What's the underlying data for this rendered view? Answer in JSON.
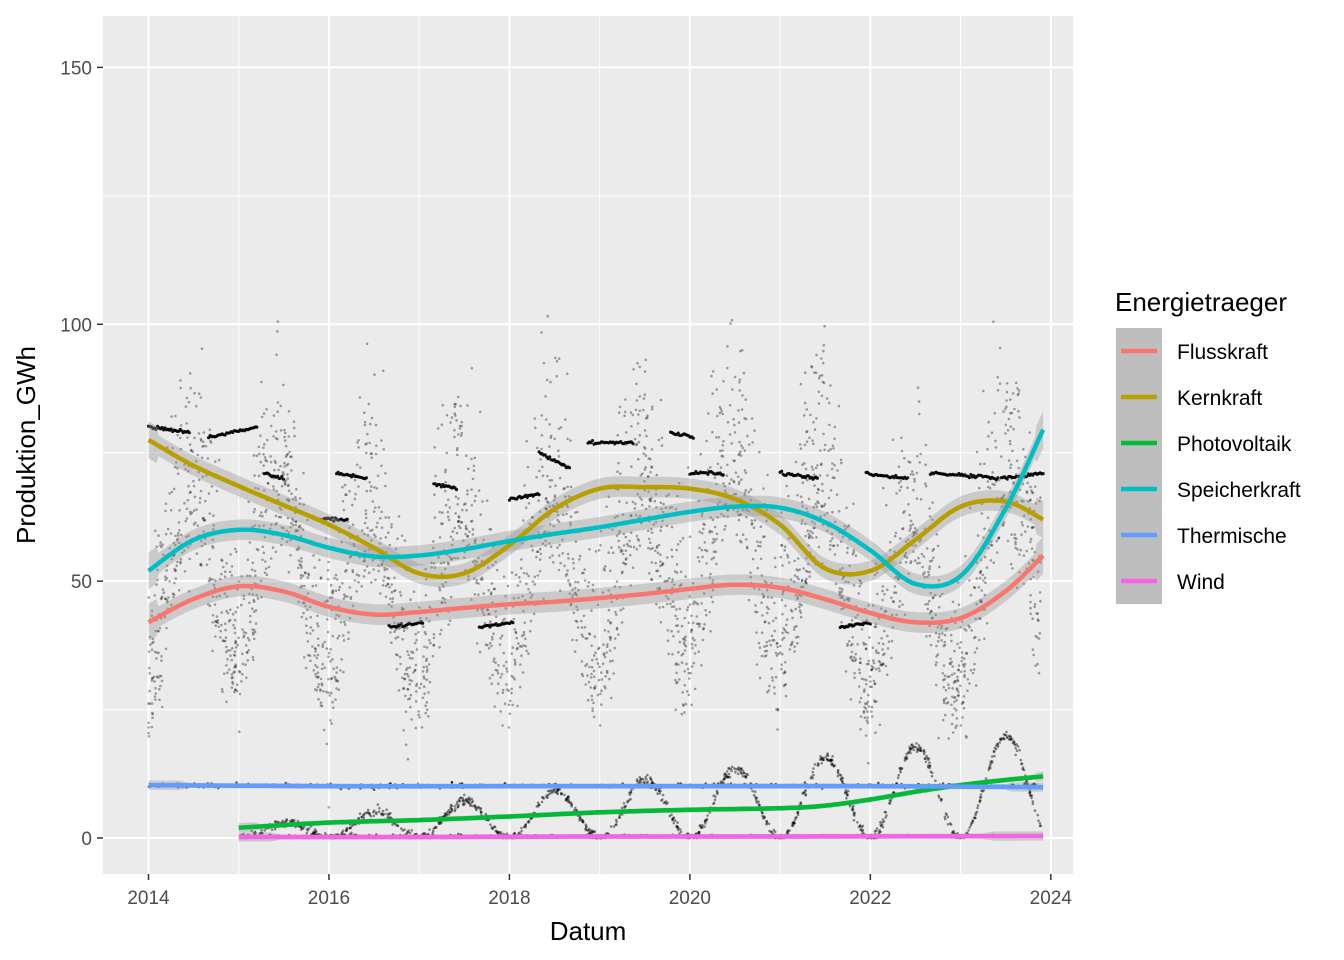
{
  "chart_data": {
    "type": "scatter",
    "xlabel": "Datum",
    "ylabel": "Produktion_GWh",
    "xlim": [
      "2013-07-01",
      "2024-03-31"
    ],
    "ylim": [
      -7,
      160
    ],
    "x_ticks": [
      "2014",
      "2016",
      "2018",
      "2020",
      "2022",
      "2024"
    ],
    "y_ticks": [
      0,
      50,
      100,
      150
    ],
    "grid": true,
    "legend": {
      "title": "Energietraeger",
      "position": "right"
    },
    "series": [
      {
        "name": "Flusskraft",
        "color": "#F8766D",
        "type": "smooth",
        "points": [
          [
            "2014-01-01",
            42
          ],
          [
            "2014-07-01",
            46.5
          ],
          [
            "2015-01-01",
            49
          ],
          [
            "2015-07-01",
            48
          ],
          [
            "2016-01-01",
            45
          ],
          [
            "2016-07-01",
            43.5
          ],
          [
            "2017-01-01",
            44
          ],
          [
            "2017-07-01",
            44.8
          ],
          [
            "2018-01-01",
            45.5
          ],
          [
            "2018-07-01",
            46
          ],
          [
            "2019-01-01",
            46.7
          ],
          [
            "2019-07-01",
            47.5
          ],
          [
            "2020-01-01",
            48.5
          ],
          [
            "2020-07-01",
            49.3
          ],
          [
            "2021-01-01",
            48.7
          ],
          [
            "2021-07-01",
            46.5
          ],
          [
            "2022-01-01",
            43.8
          ],
          [
            "2022-07-01",
            42
          ],
          [
            "2023-01-01",
            42.8
          ],
          [
            "2023-07-01",
            48
          ],
          [
            "2023-12-01",
            55
          ]
        ]
      },
      {
        "name": "Kernkraft",
        "color": "#B79F00",
        "type": "smooth",
        "points": [
          [
            "2014-01-01",
            77.5
          ],
          [
            "2014-07-01",
            72.5
          ],
          [
            "2015-01-01",
            68.5
          ],
          [
            "2015-07-01",
            64.8
          ],
          [
            "2016-01-01",
            61
          ],
          [
            "2016-07-01",
            56.5
          ],
          [
            "2017-01-01",
            51.5
          ],
          [
            "2017-07-01",
            51.5
          ],
          [
            "2018-01-01",
            57
          ],
          [
            "2018-07-01",
            64
          ],
          [
            "2019-01-01",
            68
          ],
          [
            "2019-07-01",
            68.3
          ],
          [
            "2020-01-01",
            68
          ],
          [
            "2020-07-01",
            66
          ],
          [
            "2021-01-01",
            61
          ],
          [
            "2021-07-01",
            52.5
          ],
          [
            "2022-01-01",
            52
          ],
          [
            "2022-07-01",
            58
          ],
          [
            "2023-01-01",
            64.5
          ],
          [
            "2023-07-01",
            65.5
          ],
          [
            "2023-12-01",
            62
          ]
        ]
      },
      {
        "name": "Photovoltaik",
        "color": "#00BA38",
        "type": "smooth",
        "points": [
          [
            "2015-01-01",
            2
          ],
          [
            "2016-01-01",
            3
          ],
          [
            "2017-01-01",
            3.5
          ],
          [
            "2018-01-01",
            4.2
          ],
          [
            "2019-01-01",
            5
          ],
          [
            "2020-01-01",
            5.5
          ],
          [
            "2021-01-01",
            5.8
          ],
          [
            "2021-07-01",
            6.3
          ],
          [
            "2022-01-01",
            7.5
          ],
          [
            "2022-07-01",
            9
          ],
          [
            "2023-01-01",
            10.3
          ],
          [
            "2023-07-01",
            11.3
          ],
          [
            "2023-12-01",
            12
          ]
        ]
      },
      {
        "name": "Speicherkraft",
        "color": "#00BFC4",
        "type": "smooth",
        "points": [
          [
            "2014-01-01",
            52
          ],
          [
            "2014-07-01",
            58
          ],
          [
            "2015-01-01",
            60
          ],
          [
            "2015-07-01",
            59
          ],
          [
            "2016-01-01",
            56.5
          ],
          [
            "2016-07-01",
            54.8
          ],
          [
            "2017-01-01",
            55
          ],
          [
            "2017-07-01",
            56.2
          ],
          [
            "2018-01-01",
            57.8
          ],
          [
            "2018-07-01",
            59.2
          ],
          [
            "2019-01-01",
            60.5
          ],
          [
            "2019-07-01",
            62
          ],
          [
            "2020-01-01",
            63.5
          ],
          [
            "2020-07-01",
            64.5
          ],
          [
            "2021-01-01",
            64.3
          ],
          [
            "2021-07-01",
            61.5
          ],
          [
            "2022-01-01",
            56
          ],
          [
            "2022-07-01",
            49.5
          ],
          [
            "2023-01-01",
            51
          ],
          [
            "2023-07-01",
            64
          ],
          [
            "2023-12-01",
            79.5
          ]
        ]
      },
      {
        "name": "Thermische",
        "color": "#619CFF",
        "type": "smooth",
        "points": [
          [
            "2014-01-01",
            10.3
          ],
          [
            "2016-01-01",
            10.1
          ],
          [
            "2018-01-01",
            10.1
          ],
          [
            "2020-01-01",
            10.1
          ],
          [
            "2022-01-01",
            10.1
          ],
          [
            "2023-12-01",
            9.9
          ]
        ]
      },
      {
        "name": "Wind",
        "color": "#F564E3",
        "type": "smooth",
        "points": [
          [
            "2015-01-01",
            0.2
          ],
          [
            "2017-01-01",
            0.2
          ],
          [
            "2019-01-01",
            0.3
          ],
          [
            "2021-01-01",
            0.3
          ],
          [
            "2023-12-01",
            0.4
          ]
        ]
      }
    ],
    "observations": {
      "color": "#000000",
      "note_series": "daily points, all carriers",
      "plateau_segments": [
        [
          "2014-01-01",
          "2014-06-15",
          80,
          79
        ],
        [
          "2014-09-01",
          "2015-03-15",
          78,
          80
        ],
        [
          "2015-04-15",
          "2015-07-01",
          71,
          70
        ],
        [
          "2015-11-15",
          "2016-03-15",
          62,
          62
        ],
        [
          "2016-02-01",
          "2016-06-01",
          71,
          70
        ],
        [
          "2016-09-01",
          "2017-01-15",
          41,
          42
        ],
        [
          "2017-03-01",
          "2017-06-01",
          69,
          68
        ],
        [
          "2017-09-01",
          "2018-01-15",
          41,
          42
        ],
        [
          "2018-01-01",
          "2018-05-01",
          66,
          67
        ],
        [
          "2018-05-01",
          "2018-09-01",
          75,
          72
        ],
        [
          "2018-11-15",
          "2019-05-15",
          77,
          77
        ],
        [
          "2019-10-15",
          "2020-01-15",
          79,
          78
        ],
        [
          "2020-01-01",
          "2020-05-15",
          71,
          71
        ],
        [
          "2021-01-01",
          "2021-06-01",
          71,
          70
        ],
        [
          "2021-09-01",
          "2022-01-01",
          41,
          42
        ],
        [
          "2021-12-15",
          "2022-06-01",
          71,
          70
        ],
        [
          "2022-09-01",
          "2023-06-01",
          71,
          70
        ],
        [
          "2023-06-15",
          "2023-12-01",
          70,
          71
        ]
      ]
    }
  }
}
